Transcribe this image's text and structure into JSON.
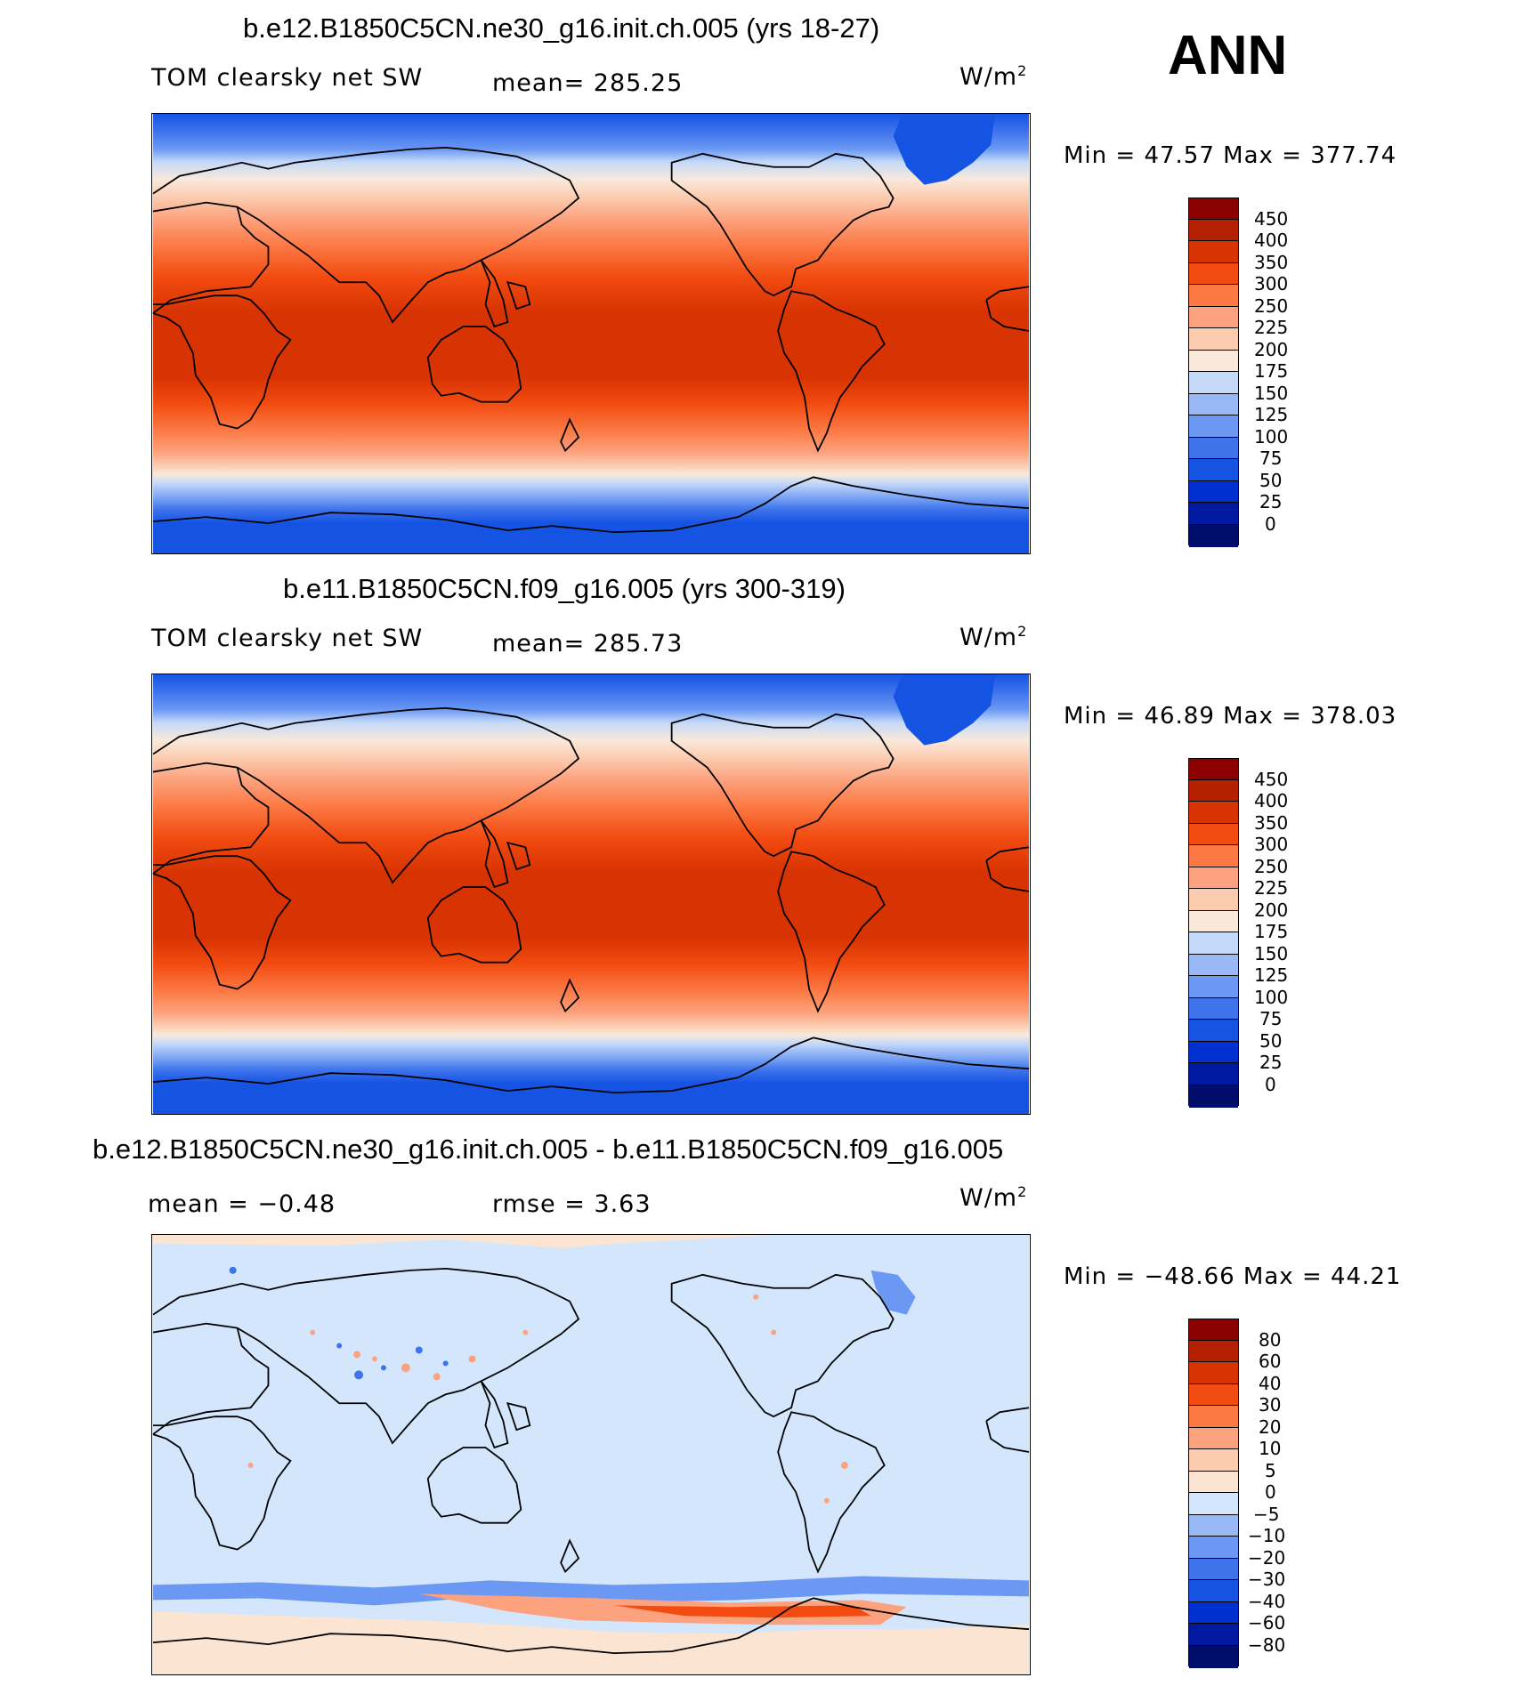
{
  "season": "ANN",
  "colors": {
    "abs": [
      "#000d6b",
      "#0019a1",
      "#0031d0",
      "#1554e3",
      "#3e73ec",
      "#6a98f3",
      "#99b9f6",
      "#c5d9f8",
      "#f9e9da",
      "#fcccb0",
      "#fca27e",
      "#fc7944",
      "#f24c12",
      "#d83302",
      "#b52000",
      "#8b0000"
    ],
    "diff": [
      "#000d6b",
      "#0019a1",
      "#0031d0",
      "#1554e3",
      "#3e73ec",
      "#6a98f3",
      "#99b9f6",
      "#d3e6fb",
      "#fce4d2",
      "#fcccb0",
      "#fca27e",
      "#fc7944",
      "#f24c12",
      "#d83302",
      "#b52000",
      "#8b0000"
    ]
  },
  "panels": [
    {
      "title": "b.e12.B1850C5CN.ne30_g16.init.ch.005 (yrs 18-27)",
      "left_label": "TOM clearsky net SW",
      "center_label": "mean= 285.25",
      "units": "W/m",
      "units_sup": "2",
      "minmax": "Min =   47.57 Max =  377.74",
      "ticks": [
        "450",
        "400",
        "350",
        "300",
        "250",
        "225",
        "200",
        "175",
        "150",
        "125",
        "100",
        "75",
        "50",
        "25",
        "0"
      ]
    },
    {
      "title": "b.e11.B1850C5CN.f09_g16.005 (yrs 300-319)",
      "left_label": "TOM clearsky net SW",
      "center_label": "mean= 285.73",
      "units": "W/m",
      "units_sup": "2",
      "minmax": "Min =   46.89 Max =  378.03",
      "ticks": [
        "450",
        "400",
        "350",
        "300",
        "250",
        "225",
        "200",
        "175",
        "150",
        "125",
        "100",
        "75",
        "50",
        "25",
        "0"
      ]
    },
    {
      "title": "b.e12.B1850C5CN.ne30_g16.init.ch.005 - b.e11.B1850C5CN.f09_g16.005",
      "left_label": "mean =   −0.48",
      "center_label": "rmse =    3.63",
      "units": "W/m",
      "units_sup": "2",
      "minmax": "Min = −48.66 Max =   44.21",
      "ticks": [
        "80",
        "60",
        "40",
        "30",
        "20",
        "10",
        "5",
        "0",
        "−5",
        "−10",
        "−20",
        "−30",
        "−40",
        "−60",
        "−80"
      ]
    }
  ]
}
